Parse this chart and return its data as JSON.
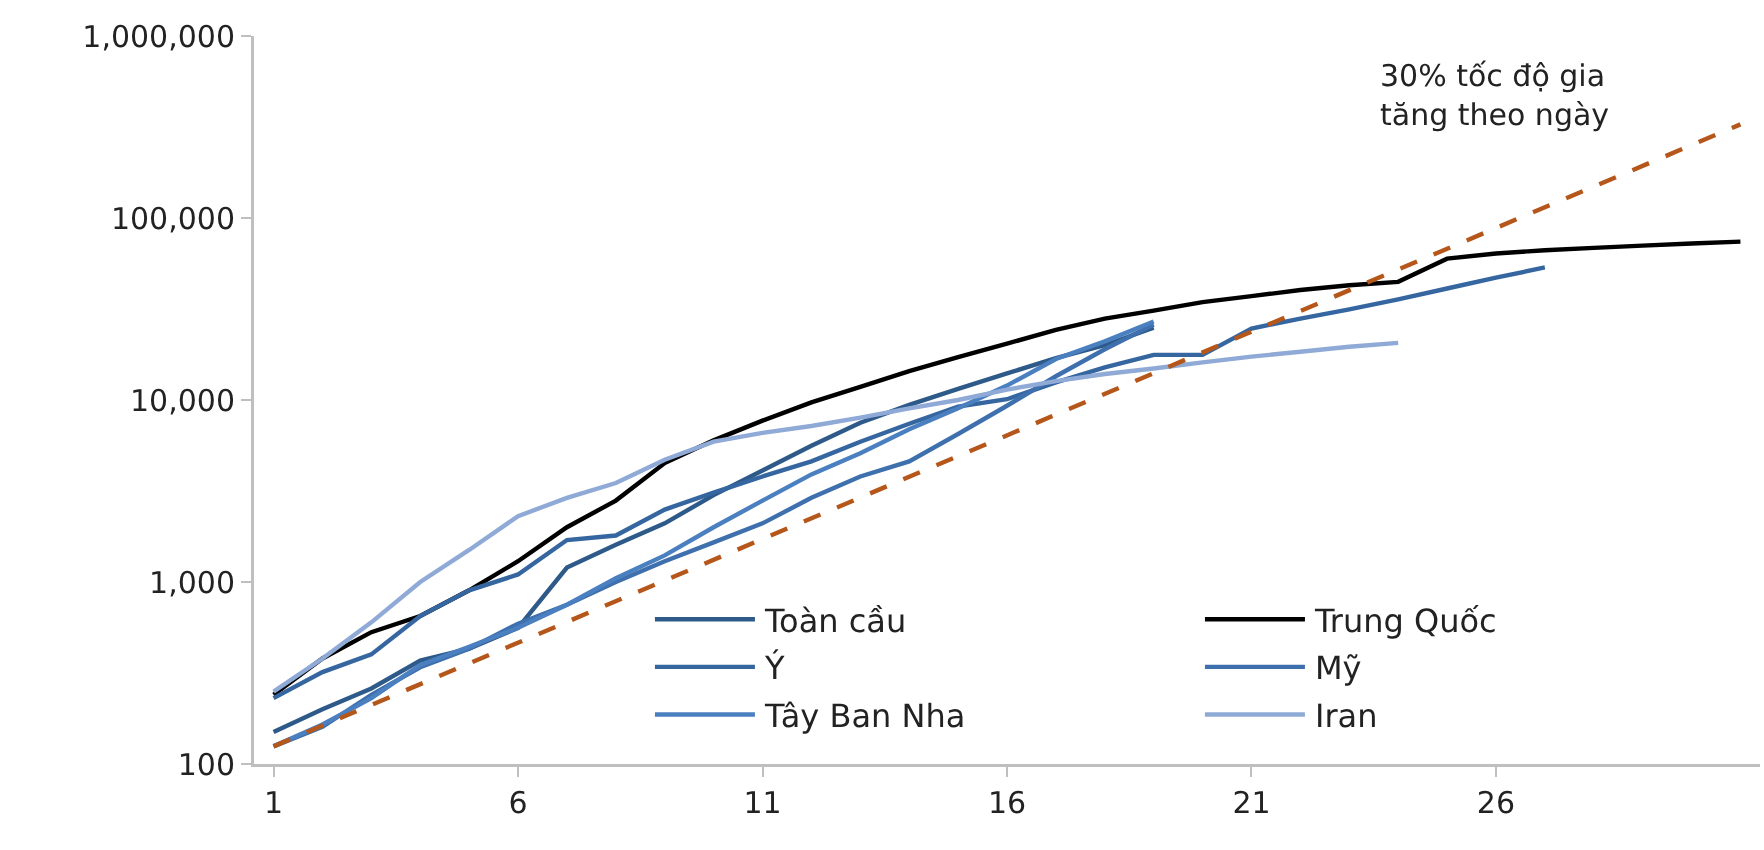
{
  "chart_data": {
    "type": "line",
    "log": true,
    "grid": false,
    "legend": "bottom right",
    "line_style": "solid",
    "marker": "none",
    "xlim": [
      0.6,
      31.4
    ],
    "xticks": [
      1,
      6,
      11,
      16,
      21,
      26
    ],
    "ylim": [
      100,
      1000000
    ],
    "yticks": [
      {
        "value": 100,
        "label": "100"
      },
      {
        "value": 1000,
        "label": "1,000"
      },
      {
        "value": 10000,
        "label": "10,000"
      },
      {
        "value": 100000,
        "label": "100,000"
      },
      {
        "value": 1000000,
        "label": "1,000,000"
      }
    ],
    "annotations": [
      "30% tốc độ gia\ntăng theo ngày"
    ],
    "series": [
      {
        "name": "Toàn cầu",
        "color": "#2e5a8a",
        "x": [
          1,
          2,
          3,
          4,
          5,
          6,
          7,
          8,
          9,
          10,
          11,
          12,
          13,
          14,
          15,
          16,
          17,
          18,
          19
        ],
        "values": [
          150,
          200,
          260,
          370,
          430,
          560,
          1200,
          1600,
          2100,
          3000,
          4100,
          5600,
          7500,
          9400,
          11500,
          14000,
          17000,
          20000,
          25000
        ]
      },
      {
        "name": "Trung Quốc",
        "color": "#000000",
        "x": [
          1,
          2,
          3,
          4,
          5,
          6,
          7,
          8,
          9,
          10,
          11,
          12,
          13,
          14,
          15,
          16,
          17,
          18,
          19,
          20,
          21,
          22,
          23,
          24,
          25,
          26,
          27,
          28,
          29,
          30,
          31
        ],
        "values": [
          240,
          380,
          530,
          650,
          900,
          1300,
          2000,
          2800,
          4500,
          6000,
          7700,
          9700,
          11800,
          14400,
          17200,
          20400,
          24300,
          28000,
          31000,
          34500,
          37200,
          40200,
          42700,
          44600,
          59800,
          63800,
          66500,
          68500,
          70500,
          72400,
          74200
        ]
      },
      {
        "name": "Ý",
        "color": "#3566a0",
        "x": [
          1,
          2,
          3,
          4,
          5,
          6,
          7,
          8,
          9,
          10,
          11,
          12,
          13,
          14,
          15,
          16,
          17,
          18,
          19,
          20,
          21,
          22,
          23,
          24,
          25,
          26,
          27
        ],
        "values": [
          230,
          320,
          400,
          650,
          900,
          1100,
          1700,
          1800,
          2500,
          3100,
          3800,
          4600,
          5900,
          7400,
          9200,
          10100,
          12500,
          15100,
          17700,
          17700,
          24700,
          28000,
          31500,
          35700,
          41000,
          47000,
          53500
        ]
      },
      {
        "name": "Mỹ",
        "color": "#3e70ad",
        "x": [
          1,
          2,
          3,
          4,
          5,
          6,
          7,
          8,
          9,
          10,
          11,
          12,
          13,
          14,
          15,
          16,
          17,
          18,
          19
        ],
        "values": [
          125,
          160,
          240,
          340,
          430,
          590,
          750,
          1000,
          1300,
          1650,
          2100,
          2900,
          3800,
          4600,
          6500,
          9300,
          13500,
          19000,
          26000
        ]
      },
      {
        "name": "Tây Ban Nha",
        "color": "#4a7fc0",
        "x": [
          1,
          2,
          3,
          4,
          5,
          6,
          7,
          8,
          9,
          10,
          11,
          12,
          13,
          14,
          15,
          16,
          17,
          18,
          19
        ],
        "values": [
          125,
          165,
          230,
          350,
          440,
          560,
          750,
          1050,
          1400,
          2000,
          2800,
          3900,
          5100,
          6900,
          9000,
          12000,
          16800,
          21000,
          27000
        ]
      },
      {
        "name": "Iran",
        "color": "#8faad6",
        "x": [
          1,
          2,
          3,
          4,
          5,
          6,
          7,
          8,
          9,
          10,
          11,
          12,
          13,
          14,
          15,
          16,
          17,
          18,
          19,
          20,
          21,
          22,
          23,
          24
        ],
        "values": [
          250,
          380,
          600,
          1000,
          1500,
          2300,
          2900,
          3500,
          4700,
          5900,
          6600,
          7200,
          8000,
          9000,
          10000,
          11400,
          12700,
          13900,
          14900,
          16100,
          17300,
          18400,
          19600,
          20600
        ]
      },
      {
        "color": "#b5571a",
        "line_style": "dashed",
        "x": [
          1,
          31
        ],
        "values": [
          125,
          327000
        ]
      }
    ]
  }
}
